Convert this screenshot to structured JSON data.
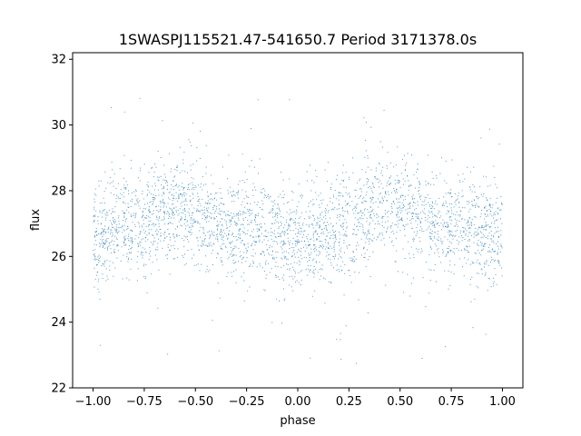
{
  "chart_data": {
    "type": "scatter",
    "title": "1SWASPJ115521.47-541650.7 Period 3171378.0s",
    "xlabel": "phase",
    "ylabel": "flux",
    "xlim": [
      -1.1,
      1.1
    ],
    "ylim": [
      22,
      32.2
    ],
    "x_ticks": [
      -1.0,
      -0.75,
      -0.5,
      -0.25,
      0.0,
      0.25,
      0.5,
      0.75,
      1.0
    ],
    "x_tick_labels": [
      "−1.00",
      "−0.75",
      "−0.50",
      "−0.25",
      "0.00",
      "0.25",
      "0.50",
      "0.75",
      "1.00"
    ],
    "y_ticks": [
      22,
      24,
      26,
      28,
      30,
      32
    ],
    "y_tick_labels": [
      "22",
      "24",
      "26",
      "28",
      "30",
      "32"
    ],
    "grid": false,
    "marker_color": "#1f77b4",
    "series": [
      {
        "x_range": [
          -1.0,
          1.0
        ],
        "trend": {
          "phase": [
            -1.0,
            -0.875,
            -0.75,
            -0.625,
            -0.5,
            -0.375,
            -0.25,
            -0.125,
            0.0,
            0.125,
            0.25,
            0.375,
            0.5,
            0.625,
            0.75,
            0.875,
            1.0
          ],
          "flux": [
            26.5,
            27.0,
            27.0,
            27.6,
            27.4,
            26.9,
            26.9,
            26.7,
            26.3,
            26.6,
            27.0,
            27.6,
            27.4,
            27.0,
            26.9,
            26.9,
            26.5
          ]
        },
        "scatter_sd": 0.8,
        "outlier_range": [
          22.5,
          31.0
        ]
      }
    ]
  }
}
